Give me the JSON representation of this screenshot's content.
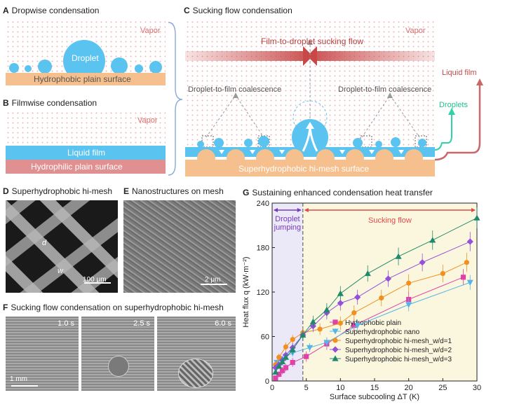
{
  "panels": {
    "a": {
      "letter": "A",
      "title": "Dropwise condensation",
      "vapor": "Vapor",
      "droplet": "Droplet",
      "surface": "Hydrophobic plain surface"
    },
    "b": {
      "letter": "B",
      "title": "Filmwise condensation",
      "vapor": "Vapor",
      "film": "Liquid film",
      "surface": "Hydrophilic plain surface"
    },
    "c": {
      "letter": "C",
      "title": "Sucking flow condensation",
      "vapor": "Vapor",
      "sucking_flow": "Film-to-droplet sucking flow",
      "coalescence_left": "Droplet-to-film coalescence",
      "coalescence_right": "Droplet-to-film coalescence",
      "liquid_film": "Liquid film",
      "droplets": "Droplets",
      "surface": "Superhydrophobic hi-mesh surface"
    },
    "d": {
      "letter": "D",
      "title": "Superhydrophobic hi-mesh",
      "label_d": "d",
      "label_w": "w",
      "scale": "100 μm"
    },
    "e": {
      "letter": "E",
      "title": "Nanostructures on mesh",
      "scale": "2 μm"
    },
    "f": {
      "letter": "F",
      "title": "Sucking flow condensation on superhydrophobic hi-mesh",
      "times": [
        "1.0 s",
        "2.5 s",
        "6.0 s"
      ],
      "scale": "1 mm"
    },
    "g": {
      "letter": "G",
      "title": "Sustaining enhanced condensation heat transfer",
      "region_left": [
        "Droplet",
        "jumping"
      ],
      "region_right": "Sucking flow"
    }
  },
  "chart_data": {
    "type": "scatter",
    "title": "Sustaining enhanced condensation heat transfer",
    "xlabel": "Surface subcooling ΔT (K)",
    "ylabel": "Heat flux q (kW·m⁻²)",
    "xlim": [
      0,
      30
    ],
    "ylim": [
      0,
      240
    ],
    "xticks": [
      0,
      5,
      10,
      15,
      20,
      25,
      30
    ],
    "yticks": [
      0,
      60,
      120,
      180,
      240
    ],
    "divider_x": 4.5,
    "legend_position": "bottom-right",
    "series": [
      {
        "name": "Hydrophobic plain",
        "color": "#e040a8",
        "marker": "square",
        "x": [
          0.5,
          1.0,
          1.5,
          2.0,
          3.0,
          5.0,
          8.0,
          12.0,
          20.0,
          28.0
        ],
        "y": [
          4,
          9,
          14,
          18,
          25,
          33,
          50,
          75,
          110,
          140
        ],
        "err": [
          3,
          4,
          5,
          5,
          6,
          7,
          8,
          9,
          10,
          11
        ]
      },
      {
        "name": "Superhydrophobic nano",
        "color": "#58b4e8",
        "marker": "triangle-down",
        "x": [
          0.7,
          1.2,
          2.0,
          3.0,
          5.5,
          8.0,
          12.5,
          20.0,
          29.0
        ],
        "y": [
          25,
          30,
          33,
          38,
          45,
          52,
          75,
          103,
          133
        ],
        "err": [
          4,
          4,
          5,
          5,
          6,
          7,
          8,
          9,
          10
        ]
      },
      {
        "name": "Superhydrophobic hi-mesh_w/d=1",
        "color": "#f09020",
        "marker": "circle",
        "x": [
          0.5,
          1.0,
          2.0,
          3.0,
          4.5,
          7.0,
          10.0,
          12.0,
          16.0,
          20.0,
          25.0,
          28.5
        ],
        "y": [
          22,
          32,
          46,
          56,
          65,
          70,
          78,
          92,
          112,
          132,
          145,
          160
        ],
        "err": [
          4,
          5,
          6,
          6,
          7,
          8,
          9,
          10,
          11,
          12,
          12,
          13
        ]
      },
      {
        "name": "Superhydrophobic hi-mesh_w/d=2",
        "color": "#9450d8",
        "marker": "diamond",
        "x": [
          0.5,
          1.0,
          1.5,
          2.0,
          3.0,
          4.5,
          6.0,
          8.0,
          10.0,
          12.5,
          17.0,
          22.0,
          29.0
        ],
        "y": [
          18,
          22,
          28,
          35,
          45,
          62,
          74,
          92,
          105,
          113,
          138,
          160,
          188
        ],
        "err": [
          4,
          4,
          5,
          5,
          6,
          7,
          8,
          9,
          10,
          10,
          11,
          12,
          13
        ]
      },
      {
        "name": "Superhydrophobic hi-mesh_w/d=3",
        "color": "#1f8a6a",
        "marker": "triangle-up",
        "x": [
          0.5,
          1.0,
          1.5,
          2.0,
          3.0,
          4.5,
          6.0,
          8.0,
          10.0,
          14.0,
          18.5,
          23.5,
          30.0
        ],
        "y": [
          12,
          20,
          26,
          32,
          42,
          62,
          80,
          96,
          118,
          145,
          168,
          190,
          220
        ],
        "err": [
          3,
          4,
          5,
          5,
          6,
          7,
          8,
          9,
          10,
          11,
          12,
          13,
          14
        ]
      }
    ]
  }
}
